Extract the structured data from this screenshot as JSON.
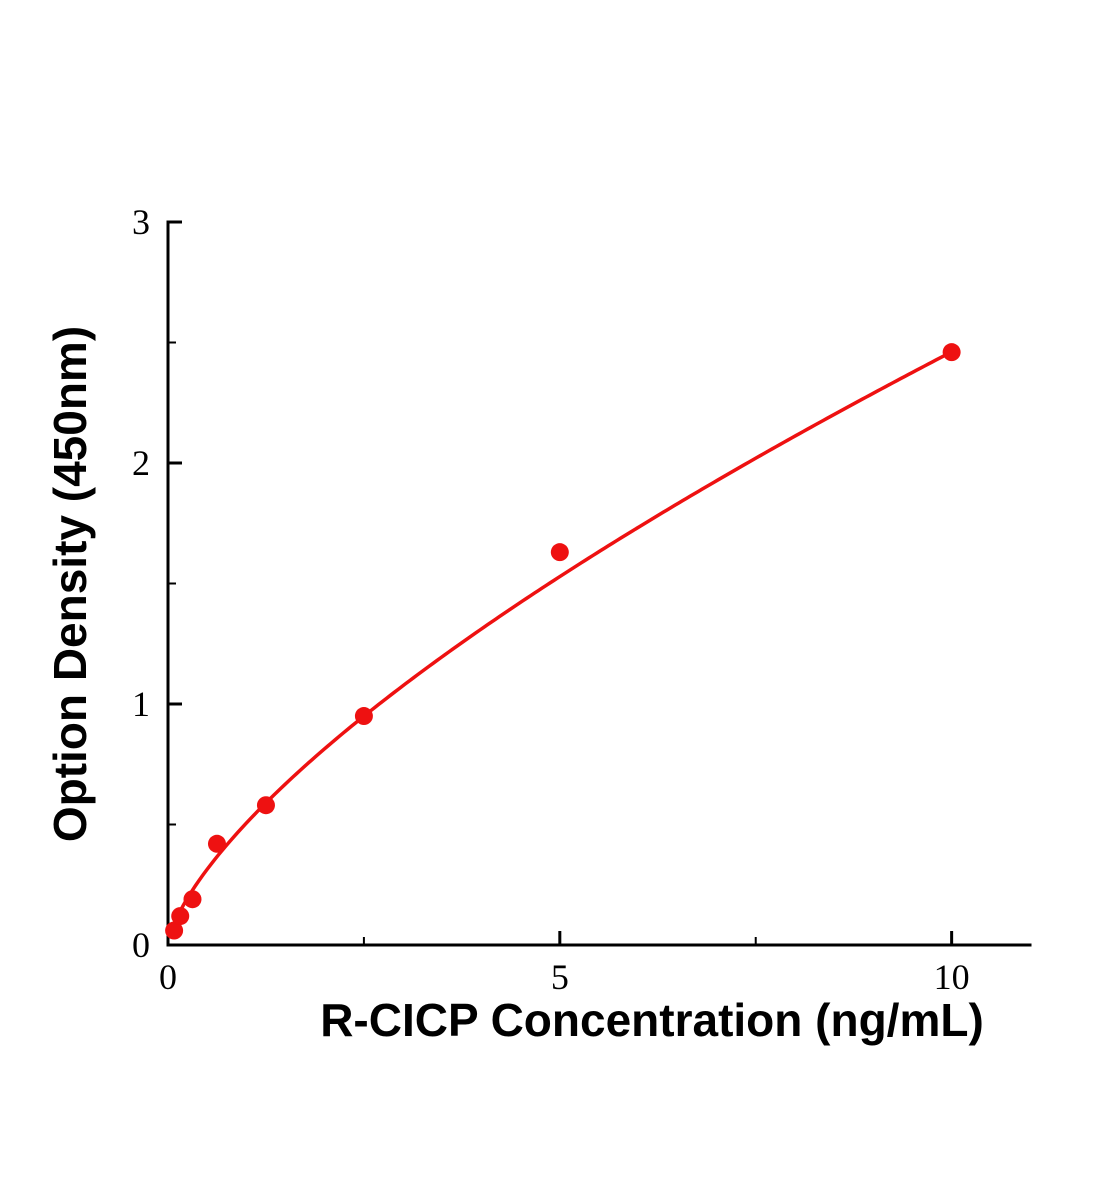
{
  "chart_data": {
    "type": "scatter",
    "title": "",
    "xlabel": "R-CICP Concentration (ng/mL)",
    "ylabel": "Option Density (450nm)",
    "x": [
      0.078,
      0.156,
      0.3125,
      0.625,
      1.25,
      2.5,
      5,
      10
    ],
    "y": [
      0.06,
      0.12,
      0.19,
      0.42,
      0.58,
      0.95,
      1.63,
      2.46
    ],
    "xlim": [
      0,
      11
    ],
    "ylim": [
      0,
      3
    ],
    "xticks": [
      0,
      5,
      10
    ],
    "xtick_labels": [
      "0",
      "5",
      "10"
    ],
    "yticks": [
      0,
      1,
      2,
      3
    ],
    "ytick_labels": [
      "0",
      "1",
      "2",
      "3"
    ],
    "x_minor_step": 2.5,
    "y_minor_step": 0.5,
    "grid": "off",
    "legend": "none",
    "point_color": "#ee1111",
    "line_color": "#ee1111",
    "axis_color": "#000000",
    "fit_curve": {
      "type": "power",
      "a": 0.506,
      "b": 0.687,
      "x_start": 0.05,
      "x_end": 10
    }
  }
}
